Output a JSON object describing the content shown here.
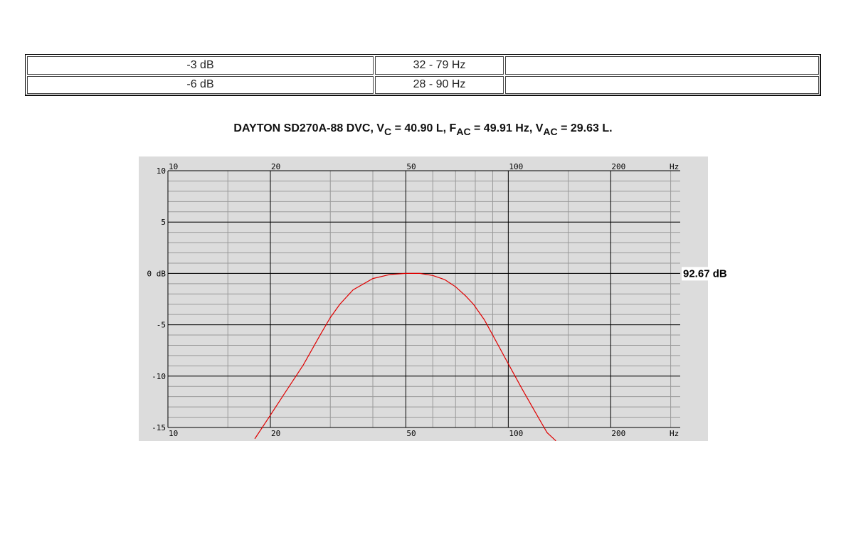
{
  "table": {
    "rows": [
      [
        "-3 dB",
        "32 - 79 Hz"
      ],
      [
        "-6 dB",
        "28 - 90 Hz"
      ]
    ]
  },
  "chart_data": {
    "type": "line",
    "title": [
      "DAYTON SD270A-88 DVC, V",
      "C",
      " = 40.90 L, F",
      "AC",
      " = 49.91 Hz, V",
      "AC",
      " = 29.63 L."
    ],
    "x": [
      18,
      20,
      22,
      25,
      28,
      30,
      32,
      35,
      40,
      45,
      50,
      55,
      60,
      65,
      70,
      75,
      79,
      85,
      90,
      100,
      110,
      120,
      130,
      138
    ],
    "values": [
      -16.1,
      -13.8,
      -11.7,
      -8.9,
      -6,
      -4.3,
      -3,
      -1.6,
      -0.5,
      -0.1,
      0,
      0,
      -0.2,
      -0.6,
      -1.3,
      -2.2,
      -3,
      -4.5,
      -6,
      -8.8,
      -11.3,
      -13.5,
      -15.5,
      -16.3
    ],
    "color": "#e00000",
    "xscale": "log",
    "xlim": [
      10,
      320
    ],
    "xticks": [
      10,
      20,
      50,
      100,
      200
    ],
    "xminor": [
      15,
      30,
      40,
      60,
      70,
      80,
      90,
      150,
      300
    ],
    "xlabel": "Hz",
    "ylim": [
      -15,
      10
    ],
    "yticks": [
      10,
      5,
      {
        "value": 0,
        "label": "0 dB"
      },
      -5,
      -10,
      -15
    ],
    "yminor_step": 1,
    "grid": true,
    "annotation": "92.67 dB"
  }
}
